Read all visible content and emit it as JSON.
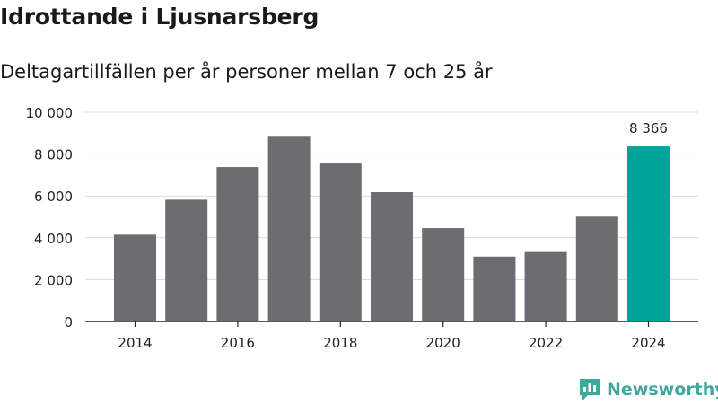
{
  "title": "Idrottande i Ljusnarsberg",
  "subtitle": "Deltagartillfällen per år personer mellan 7 och 25 år",
  "brand": {
    "name": "Newsworthy",
    "icon": "newsworthy-logo-icon"
  },
  "colors": {
    "bar": "#6d6c71",
    "highlight": "#00a49a",
    "grid": "#d9d9d9",
    "axis": "#222222",
    "text": "#222222"
  },
  "chart_data": {
    "type": "bar",
    "title": "Idrottande i Ljusnarsberg",
    "subtitle": "Deltagartillfällen per år personer mellan 7 och 25 år",
    "xlabel": "",
    "ylabel": "",
    "categories": [
      "2014",
      "2015",
      "2016",
      "2017",
      "2018",
      "2019",
      "2020",
      "2021",
      "2022",
      "2023",
      "2024"
    ],
    "values": [
      4150,
      5820,
      7380,
      8830,
      7550,
      6180,
      4460,
      3100,
      3320,
      5010,
      8366
    ],
    "highlight_index": 10,
    "highlight_label": "8 366",
    "ylim": [
      0,
      10000
    ],
    "yticks": [
      0,
      2000,
      4000,
      6000,
      8000,
      10000
    ],
    "ytick_labels": [
      "0",
      "2 000",
      "4 000",
      "6 000",
      "8 000",
      "10 000"
    ],
    "xtick_labels": [
      "2014",
      "2016",
      "2018",
      "2020",
      "2022",
      "2024"
    ],
    "grid": true
  }
}
